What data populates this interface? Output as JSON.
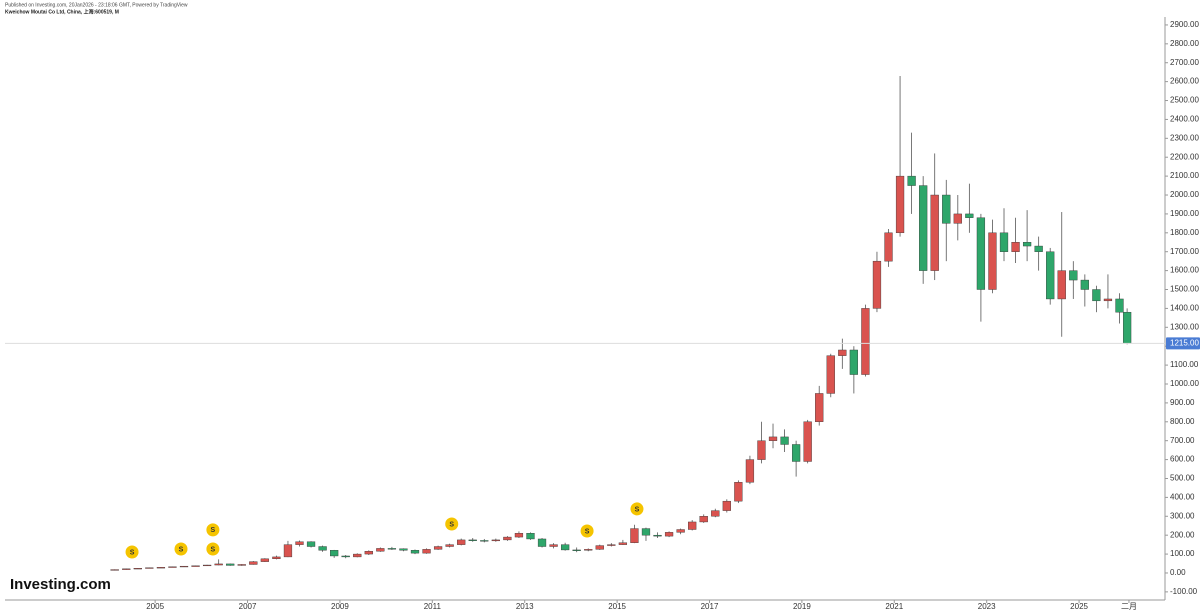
{
  "header": {
    "published": "Published on Investing.com, 20Jan2026 - 23:18:06 GMT, Powered by TradingView",
    "instrument": "Kweichow Moutai Co Ltd, China, 上海:600519, M"
  },
  "logo": "Investing.com",
  "chart_data": {
    "type": "candlestick",
    "up_color": "#d9534f",
    "down_color": "#2ea66a",
    "wick_color": "#555555",
    "xlim": [
      2001.75,
      2026.86
    ],
    "xticks": [
      2005,
      2007,
      2009,
      2011,
      2013,
      2015,
      2017,
      2019,
      2021,
      2023,
      2025,
      {
        "value": 2026.08,
        "label": "二月"
      }
    ],
    "ylim": [
      -143,
      2942
    ],
    "yticks": [
      {
        "value": -100,
        "label": "-100.00"
      },
      {
        "value": 0,
        "label": "0.00"
      },
      {
        "value": 100,
        "label": "100.00"
      },
      {
        "value": 200,
        "label": "200.00"
      },
      {
        "value": 300,
        "label": "300.00"
      },
      {
        "value": 400,
        "label": "400.00"
      },
      {
        "value": 500,
        "label": "500.00"
      },
      {
        "value": 600,
        "label": "600.00"
      },
      {
        "value": 700,
        "label": "700.00"
      },
      {
        "value": 800,
        "label": "800.00"
      },
      {
        "value": 900,
        "label": "900.00"
      },
      {
        "value": 1000,
        "label": "1000.00"
      },
      {
        "value": 1100,
        "label": "1100.00"
      },
      {
        "value": 1200,
        "label": "1200.00"
      },
      {
        "value": 1300,
        "label": "1300.00"
      },
      {
        "value": 1400,
        "label": "1400.00"
      },
      {
        "value": 1500,
        "label": "1500.00"
      },
      {
        "value": 1600,
        "label": "1600.00"
      },
      {
        "value": 1700,
        "label": "1700.00"
      },
      {
        "value": 1800,
        "label": "1800.00"
      },
      {
        "value": 1900,
        "label": "1900.00"
      },
      {
        "value": 2000,
        "label": "2000.00"
      },
      {
        "value": 2100,
        "label": "2100.00"
      },
      {
        "value": 2200,
        "label": "2200.00"
      },
      {
        "value": 2300,
        "label": "2300.00"
      },
      {
        "value": 2400,
        "label": "2400.00"
      },
      {
        "value": 2500,
        "label": "2500.00"
      },
      {
        "value": 2600,
        "label": "2600.00"
      },
      {
        "value": 2700,
        "label": "2700.00"
      },
      {
        "value": 2800,
        "label": "2800.00"
      },
      {
        "value": 2900,
        "label": "2900.00"
      }
    ],
    "x": [
      2004.125,
      2004.375,
      2004.625,
      2004.875,
      2005.125,
      2005.375,
      2005.625,
      2005.875,
      2006.125,
      2006.375,
      2006.625,
      2006.875,
      2007.125,
      2007.375,
      2007.625,
      2007.875,
      2008.125,
      2008.375,
      2008.625,
      2008.875,
      2009.125,
      2009.375,
      2009.625,
      2009.875,
      2010.125,
      2010.375,
      2010.625,
      2010.875,
      2011.125,
      2011.375,
      2011.625,
      2011.875,
      2012.125,
      2012.375,
      2012.625,
      2012.875,
      2013.125,
      2013.375,
      2013.625,
      2013.875,
      2014.125,
      2014.375,
      2014.625,
      2014.875,
      2015.125,
      2015.375,
      2015.625,
      2015.875,
      2016.125,
      2016.375,
      2016.625,
      2016.875,
      2017.125,
      2017.375,
      2017.625,
      2017.875,
      2018.125,
      2018.375,
      2018.625,
      2018.875,
      2019.125,
      2019.375,
      2019.625,
      2019.875,
      2020.125,
      2020.375,
      2020.625,
      2020.875,
      2021.125,
      2021.375,
      2021.625,
      2021.875,
      2022.125,
      2022.375,
      2022.625,
      2022.875,
      2023.125,
      2023.375,
      2023.625,
      2023.875,
      2024.125,
      2024.375,
      2024.625,
      2024.875,
      2025.125,
      2025.375,
      2025.625,
      2025.875,
      2026.04
    ],
    "open": [
      15,
      18,
      22,
      25,
      28,
      30,
      33,
      36,
      38,
      42,
      48,
      40,
      45,
      60,
      75,
      85,
      150,
      165,
      140,
      120,
      90,
      85,
      100,
      115,
      130,
      128,
      120,
      105,
      125,
      140,
      150,
      175,
      172,
      170,
      175,
      190,
      210,
      180,
      140,
      150,
      122,
      120,
      125,
      145,
      150,
      160,
      235,
      200,
      195,
      215,
      230,
      270,
      300,
      330,
      380,
      480,
      600,
      700,
      720,
      680,
      590,
      800,
      950,
      1150,
      1180,
      1050,
      1400,
      1650,
      1800,
      2100,
      2050,
      1600,
      2000,
      1850,
      1900,
      1880,
      1500,
      1800,
      1700,
      1750,
      1730,
      1700,
      1450,
      1600,
      1550,
      1500,
      1440,
      1450,
      1380
    ],
    "high": [
      19,
      23,
      26,
      29,
      31,
      34,
      37,
      39,
      43,
      72,
      50,
      47,
      63,
      78,
      92,
      170,
      172,
      168,
      145,
      122,
      95,
      104,
      120,
      135,
      138,
      130,
      124,
      130,
      145,
      155,
      182,
      185,
      180,
      182,
      195,
      220,
      215,
      185,
      158,
      160,
      135,
      130,
      150,
      158,
      175,
      255,
      240,
      215,
      220,
      235,
      280,
      310,
      340,
      390,
      490,
      620,
      800,
      790,
      760,
      700,
      810,
      990,
      1160,
      1240,
      1200,
      1420,
      1700,
      1820,
      2630,
      2330,
      2100,
      2220,
      2080,
      2000,
      2060,
      1900,
      1870,
      1930,
      1880,
      1920,
      1780,
      1720,
      1910,
      1650,
      1580,
      1520,
      1580,
      1480,
      1400
    ],
    "low": [
      14,
      17,
      21,
      24,
      27,
      29,
      32,
      35,
      37,
      41,
      38,
      38,
      44,
      58,
      72,
      84,
      140,
      135,
      112,
      80,
      78,
      83,
      95,
      112,
      122,
      115,
      100,
      102,
      122,
      135,
      146,
      165,
      162,
      165,
      170,
      185,
      175,
      135,
      130,
      118,
      110,
      115,
      122,
      140,
      148,
      158,
      170,
      185,
      190,
      205,
      225,
      265,
      295,
      320,
      370,
      470,
      580,
      660,
      640,
      510,
      580,
      780,
      930,
      1080,
      950,
      1040,
      1380,
      1620,
      1780,
      1900,
      1530,
      1550,
      1650,
      1760,
      1800,
      1330,
      1480,
      1650,
      1640,
      1650,
      1600,
      1420,
      1250,
      1450,
      1410,
      1380,
      1400,
      1320,
      1210
    ],
    "close": [
      18,
      22,
      25,
      28,
      30,
      33,
      36,
      38,
      42,
      48,
      40,
      45,
      60,
      75,
      85,
      150,
      165,
      140,
      120,
      90,
      85,
      100,
      115,
      130,
      128,
      120,
      105,
      125,
      140,
      150,
      175,
      172,
      170,
      175,
      190,
      210,
      180,
      140,
      150,
      122,
      120,
      125,
      145,
      150,
      160,
      235,
      200,
      195,
      215,
      230,
      270,
      300,
      330,
      380,
      480,
      600,
      700,
      720,
      680,
      590,
      800,
      950,
      1150,
      1180,
      1050,
      1400,
      1650,
      1800,
      2100,
      2050,
      1600,
      2000,
      1850,
      1900,
      1880,
      1500,
      1800,
      1700,
      1750,
      1730,
      1700,
      1450,
      1600,
      1550,
      1500,
      1440,
      1450,
      1380,
      1215
    ],
    "last_price": {
      "value": 1215,
      "label": "1215.00"
    },
    "price_line_color": "#dddddd",
    "price_label_color": "#4a7cd4",
    "annotations": [
      {
        "x": 2004.5,
        "y": 111,
        "label": "S"
      },
      {
        "x": 2005.56,
        "y": 127,
        "label": "S"
      },
      {
        "x": 2006.25,
        "y": 228,
        "label": "S"
      },
      {
        "x": 2006.25,
        "y": 127,
        "label": "S"
      },
      {
        "x": 2011.42,
        "y": 259,
        "label": "S"
      },
      {
        "x": 2014.35,
        "y": 222,
        "label": "S"
      },
      {
        "x": 2015.43,
        "y": 339,
        "label": "S"
      }
    ],
    "annotation_color": "#f5c400"
  }
}
